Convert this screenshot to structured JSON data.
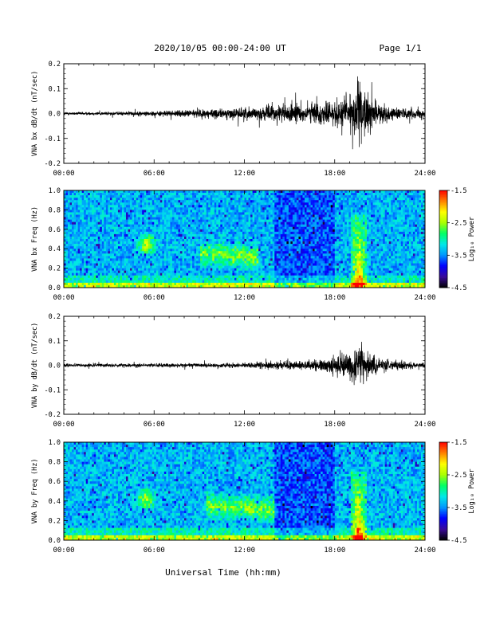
{
  "header": {
    "title": "2020/10/05  00:00-24:00 UT",
    "page": "Page 1/1"
  },
  "xlabel": "Universal Time (hh:mm)",
  "colorbar": {
    "label": "Log₁₀ Power",
    "ticks": [
      "-1.5",
      "-2.5",
      "-3.5",
      "-4.5"
    ],
    "range": [
      -4.5,
      -1.5
    ],
    "colors": [
      "#000000",
      "#3a0a9a",
      "#0000ff",
      "#0096ff",
      "#00e8e8",
      "#00ff66",
      "#aaff00",
      "#ffff00",
      "#ff8000",
      "#ff0000"
    ]
  },
  "chart_data": [
    {
      "type": "line",
      "panel": "bx_timeseries",
      "ylabel": "VNA bx dB/dt (nT/sec)",
      "xlim": [
        0,
        24
      ],
      "ylim": [
        -0.2,
        0.2
      ],
      "xticks": [
        "00:00",
        "06:00",
        "12:00",
        "18:00",
        "24:00"
      ],
      "yticks": [
        "0.2",
        "0.1",
        "0.0",
        "-0.1",
        "-0.2"
      ],
      "envelope": {
        "hour": [
          0,
          4,
          8,
          9,
          11,
          12,
          13,
          14,
          15,
          16,
          17,
          18,
          19,
          19.5,
          20,
          20.5,
          21,
          22,
          23,
          24
        ],
        "amplitude": [
          0.012,
          0.015,
          0.025,
          0.035,
          0.04,
          0.05,
          0.05,
          0.07,
          0.08,
          0.07,
          0.09,
          0.1,
          0.17,
          0.25,
          0.2,
          0.12,
          0.07,
          0.05,
          0.04,
          0.03
        ]
      },
      "line_color": "#000000"
    },
    {
      "type": "heatmap",
      "panel": "bx_spectrogram",
      "ylabel": "VNA bx Freq (Hz)",
      "xlim": [
        0,
        24
      ],
      "ylim": [
        0,
        1
      ],
      "xticks": [
        "00:00",
        "06:00",
        "12:00",
        "18:00",
        "24:00"
      ],
      "yticks": [
        "1.0",
        "0.8",
        "0.6",
        "0.4",
        "0.2",
        "0.0"
      ],
      "zlim": [
        -4.5,
        -1.5
      ],
      "features": {
        "blob1": {
          "hour": 5.5,
          "freq": 0.45
        },
        "blob2": {
          "hour_start": 9,
          "hour_end": 13,
          "freq": 0.35
        },
        "pulsation_event": {
          "hour": 19.6,
          "freq_max": 0.75
        }
      }
    },
    {
      "type": "line",
      "panel": "by_timeseries",
      "ylabel": "VNA by dB/dt (nT/sec)",
      "xlim": [
        0,
        24
      ],
      "ylim": [
        -0.2,
        0.2
      ],
      "xticks": [
        "00:00",
        "06:00",
        "12:00",
        "18:00",
        "24:00"
      ],
      "yticks": [
        "0.2",
        "0.1",
        "0.0",
        "-0.1",
        "-0.2"
      ],
      "envelope": {
        "hour": [
          0,
          4,
          8,
          12,
          14,
          16,
          17,
          18,
          19,
          19.5,
          20,
          20.5,
          21,
          22,
          24
        ],
        "amplitude": [
          0.012,
          0.015,
          0.015,
          0.02,
          0.03,
          0.04,
          0.05,
          0.07,
          0.1,
          0.18,
          0.12,
          0.08,
          0.05,
          0.04,
          0.02
        ]
      },
      "line_color": "#000000"
    },
    {
      "type": "heatmap",
      "panel": "by_spectrogram",
      "ylabel": "VNA by Freq (Hz)",
      "xlim": [
        0,
        24
      ],
      "ylim": [
        0,
        1
      ],
      "xticks": [
        "00:00",
        "06:00",
        "12:00",
        "18:00",
        "24:00"
      ],
      "yticks": [
        "1.0",
        "0.8",
        "0.6",
        "0.4",
        "0.2",
        "0.0"
      ],
      "zlim": [
        -4.5,
        -1.5
      ],
      "features": {
        "blob1": {
          "hour": 5.5,
          "freq": 0.42
        },
        "blob2": {
          "hour_start": 9.5,
          "hour_end": 14,
          "freq": 0.35
        },
        "pulsation_event": {
          "hour": 19.6,
          "freq_max": 0.7
        }
      }
    }
  ]
}
